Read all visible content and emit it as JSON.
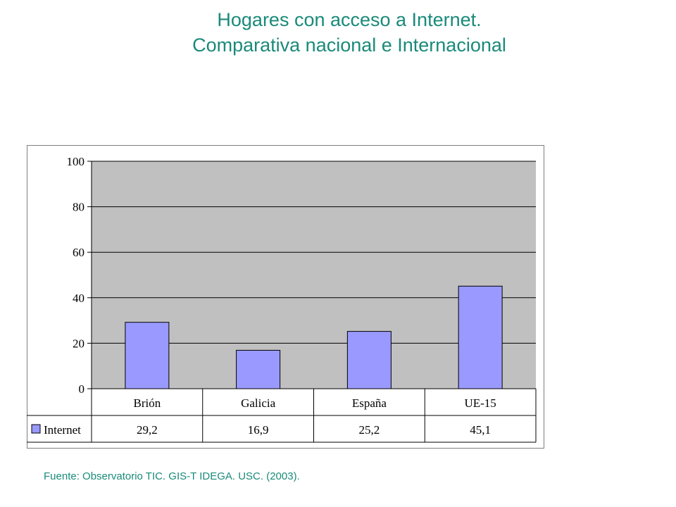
{
  "title_line1": "Hogares con acceso a Internet.",
  "title_line2": "Comparativa nacional e Internacional",
  "source": "Fuente: Observatorio TIC. GIS-T IDEGA. USC. (2003).",
  "chart_data": {
    "type": "bar",
    "categories": [
      "Brión",
      "Galicia",
      "España",
      "UE-15"
    ],
    "series": [
      {
        "name": "Internet",
        "values": [
          29.2,
          16.9,
          25.2,
          45.1
        ],
        "labels": [
          "29,2",
          "16,9",
          "25,2",
          "45,1"
        ]
      }
    ],
    "ylim": [
      0,
      100
    ],
    "yticks": [
      "0",
      "20",
      "40",
      "60",
      "80",
      "100"
    ],
    "grid": true,
    "legend": "data-table",
    "colors": {
      "bar": "#9999ff",
      "plot_bg": "#c0c0c0",
      "title": "#1a8a7a"
    }
  }
}
